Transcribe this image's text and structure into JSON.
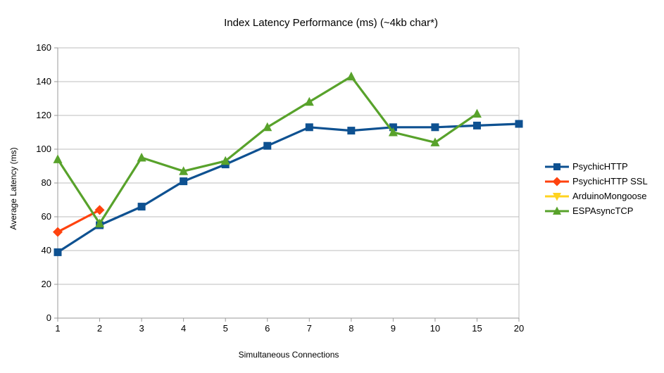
{
  "title": "Index Latency Performance (ms) (~4kb char*)",
  "chart_data": {
    "type": "line",
    "title": "Index Latency Performance (ms) (~4kb char*)",
    "xlabel": "Simultaneous Connections",
    "ylabel": "Average Latency (ms)",
    "categories": [
      "1",
      "2",
      "3",
      "4",
      "5",
      "6",
      "7",
      "8",
      "9",
      "10",
      "15",
      "20"
    ],
    "y_ticks": [
      0,
      20,
      40,
      60,
      80,
      100,
      120,
      140,
      160
    ],
    "ylim": [
      0,
      160
    ],
    "grid": true,
    "legend_position": "right",
    "series": [
      {
        "name": "PsychicHTTP",
        "color": "#0e5191",
        "marker": "square",
        "values": [
          39,
          55,
          66,
          81,
          91,
          102,
          113,
          111,
          113,
          113,
          114,
          115
        ]
      },
      {
        "name": "PsychicHTTP SSL",
        "color": "#ff420e",
        "marker": "diamond",
        "values": [
          51,
          64,
          null,
          null,
          null,
          null,
          null,
          null,
          null,
          null,
          null,
          null
        ]
      },
      {
        "name": "ArduinoMongoose",
        "color": "#ffd320",
        "marker": "triangle-down",
        "values": [
          null,
          null,
          null,
          null,
          null,
          null,
          null,
          null,
          null,
          null,
          null,
          null
        ]
      },
      {
        "name": "ESPAsyncTCP",
        "color": "#58a22b",
        "marker": "triangle-up",
        "values": [
          94,
          56,
          95,
          87,
          93,
          113,
          128,
          143,
          110,
          104,
          121,
          null
        ]
      }
    ],
    "colors": {
      "grid_line": "#bcbcbc",
      "axis_line": "#9a9a9a",
      "text": "#000000",
      "background": "#ffffff"
    }
  }
}
